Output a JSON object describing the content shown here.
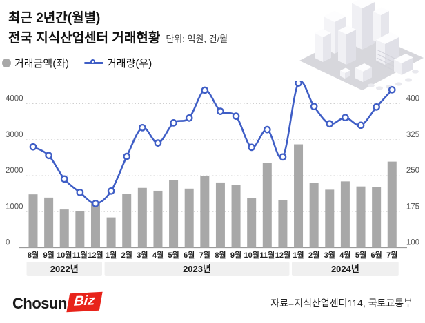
{
  "header": {
    "title_line1": "최근 2년간(월별)",
    "title_line2": "전국 지식산업센터 거래현황",
    "unit_label": "단위: 억원, 건/월"
  },
  "legend": {
    "bar_label": "거래금액(좌)",
    "line_label": "거래량(우)"
  },
  "colors": {
    "bar": "#a8a8a8",
    "line": "#3f5ec6",
    "grid": "#cfcfcf",
    "axis": "#9a9a9a",
    "year_band": "#f0f0f0",
    "logo_red": "#e8231a"
  },
  "chart_data": {
    "type": "bar+line combo",
    "categories": [
      "8월",
      "9월",
      "10월",
      "11월",
      "12월",
      "1월",
      "2월",
      "3월",
      "4월",
      "5월",
      "6월",
      "7월",
      "8월",
      "9월",
      "10월",
      "11월",
      "12월",
      "1월",
      "2월",
      "3월",
      "4월",
      "5월",
      "6월",
      "7월"
    ],
    "year_groups": [
      {
        "label": "2022년",
        "start": 0,
        "end": 4
      },
      {
        "label": "2023년",
        "start": 5,
        "end": 16
      },
      {
        "label": "2024년",
        "start": 17,
        "end": 23
      }
    ],
    "series": [
      {
        "name": "거래금액(좌)",
        "type": "bar",
        "axis": "left",
        "values": [
          1480,
          1390,
          1060,
          1020,
          1230,
          840,
          1490,
          1660,
          1580,
          1880,
          1640,
          2000,
          1810,
          1740,
          1370,
          2350,
          1330,
          2870,
          1800,
          1610,
          1840,
          1700,
          1680,
          2390
        ]
      },
      {
        "name": "거래량(우)",
        "type": "line",
        "axis": "right",
        "values": [
          310,
          292,
          243,
          215,
          192,
          218,
          290,
          350,
          318,
          360,
          370,
          428,
          384,
          374,
          309,
          346,
          289,
          443,
          394,
          358,
          371,
          355,
          393,
          429
        ]
      }
    ],
    "left_axis": {
      "ticks": [
        "0",
        "1000",
        "2000",
        "3000",
        "4000"
      ],
      "range": [
        0,
        4000
      ]
    },
    "right_axis": {
      "ticks": [
        "100",
        "175",
        "250",
        "325",
        "400"
      ],
      "range": [
        100,
        400
      ]
    },
    "grid": "horizontal dotted, solid baseline",
    "legend_position": "top-left"
  },
  "footer": {
    "logo_part1": "Chosun",
    "logo_part2": "Biz",
    "source": "자료=지식산업센터114, 국토교통부"
  },
  "illustration": "isometric-city-buildings"
}
